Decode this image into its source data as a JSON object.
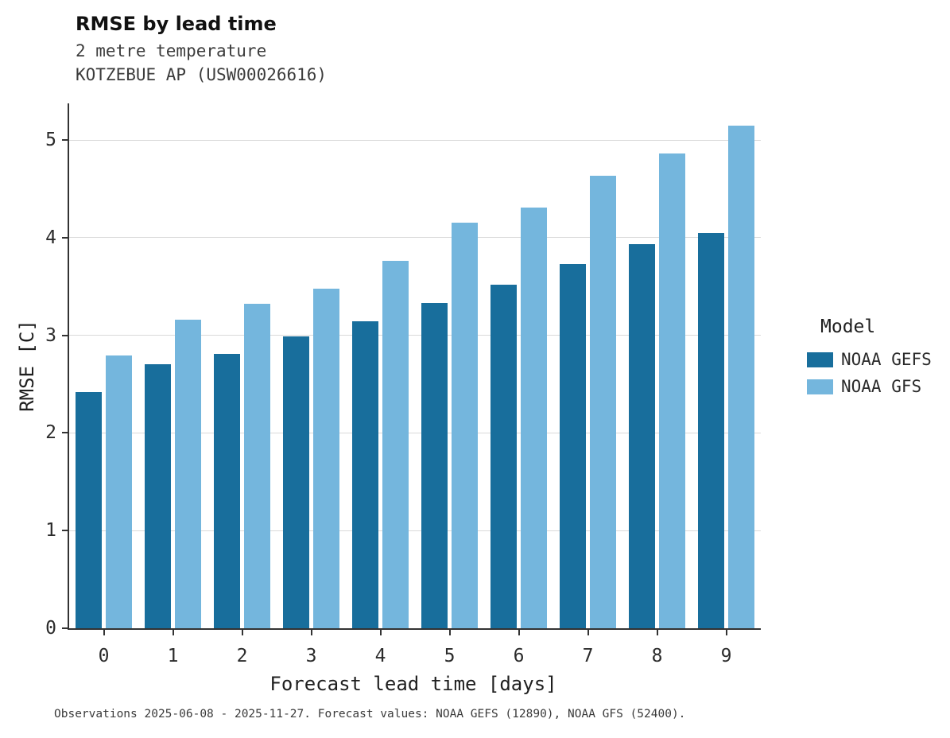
{
  "header": {
    "title": "RMSE by lead time",
    "subtitle1": "2 metre temperature",
    "subtitle2": "KOTZEBUE AP (USW00026616)"
  },
  "chart_data": {
    "type": "bar",
    "title": "RMSE by lead time",
    "subtitle": "2 metre temperature — KOTZEBUE AP (USW00026616)",
    "categories": [
      0,
      1,
      2,
      3,
      4,
      5,
      6,
      7,
      8,
      9
    ],
    "series": [
      {
        "name": "NOAA GEFS",
        "color": "#186e9c",
        "values": [
          2.42,
          2.7,
          2.81,
          2.99,
          3.14,
          3.33,
          3.52,
          3.73,
          3.93,
          4.05
        ]
      },
      {
        "name": "NOAA GFS",
        "color": "#74b6dd",
        "values": [
          2.79,
          3.16,
          3.32,
          3.48,
          3.76,
          4.15,
          4.31,
          4.63,
          4.86,
          5.15
        ]
      }
    ],
    "xlabel": "Forecast lead time [days]",
    "ylabel": "RMSE [C]",
    "ylim": [
      0,
      5.375
    ],
    "yticks": [
      0,
      1,
      2,
      3,
      4,
      5
    ],
    "grid": true,
    "legend_title": "Model",
    "legend_position": "right"
  },
  "footer": {
    "caption": "Observations 2025-06-08 - 2025-11-27. Forecast values: NOAA GEFS (12890), NOAA GFS (52400)."
  }
}
